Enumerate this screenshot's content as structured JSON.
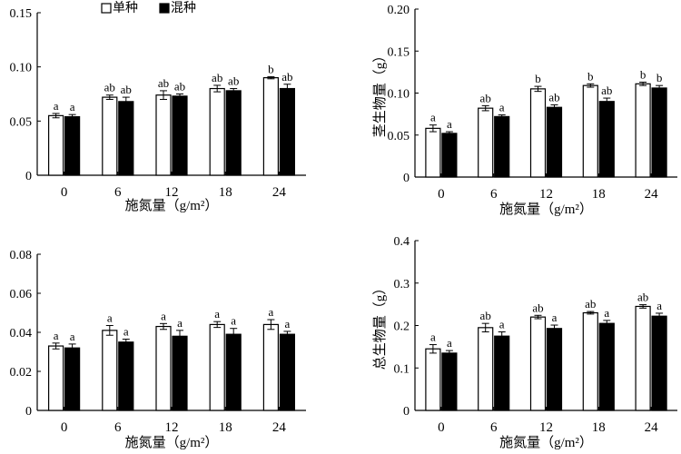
{
  "legend": {
    "single": "单种",
    "mixed": "混种"
  },
  "chart_data": [
    {
      "id": "top-left",
      "type": "bar",
      "title": "",
      "xlabel": "施氮量（g/m²）",
      "ylabel": "",
      "ylim": [
        0,
        0.15
      ],
      "yticks": [
        "0",
        "0.05",
        "0.10",
        "0.15"
      ],
      "ytick_values": [
        0,
        0.05,
        0.1,
        0.15
      ],
      "categories": [
        "0",
        "6",
        "12",
        "18",
        "24"
      ],
      "series": [
        {
          "name": "单种",
          "values": [
            0.055,
            0.072,
            0.074,
            0.08,
            0.09
          ],
          "errors": [
            0.002,
            0.002,
            0.004,
            0.003,
            0.001
          ],
          "labels": [
            "a",
            "ab",
            "ab",
            "ab",
            "b"
          ]
        },
        {
          "name": "混种",
          "values": [
            0.054,
            0.068,
            0.073,
            0.078,
            0.08
          ],
          "errors": [
            0.002,
            0.004,
            0.002,
            0.002,
            0.004
          ],
          "labels": [
            "a",
            "ab",
            "ab",
            "ab",
            "ab"
          ]
        }
      ]
    },
    {
      "id": "top-right",
      "type": "bar",
      "title": "",
      "xlabel": "施氮量（g/m²）",
      "ylabel": "茎生物量（g）",
      "ylim": [
        0,
        0.2
      ],
      "yticks": [
        "0",
        "0.05",
        "0.10",
        "0.15",
        "0.20"
      ],
      "ytick_values": [
        0,
        0.05,
        0.1,
        0.15,
        0.2
      ],
      "categories": [
        "0",
        "6",
        "12",
        "18",
        "24"
      ],
      "series": [
        {
          "name": "单种",
          "values": [
            0.058,
            0.082,
            0.105,
            0.109,
            0.111
          ],
          "errors": [
            0.004,
            0.003,
            0.003,
            0.002,
            0.002
          ],
          "labels": [
            "a",
            "ab",
            "b",
            "b",
            "b"
          ]
        },
        {
          "name": "混种",
          "values": [
            0.052,
            0.072,
            0.083,
            0.09,
            0.106
          ],
          "errors": [
            0.002,
            0.002,
            0.003,
            0.004,
            0.003
          ],
          "labels": [
            "a",
            "a",
            "ab",
            "ab",
            "b"
          ]
        }
      ]
    },
    {
      "id": "bottom-left",
      "type": "bar",
      "title": "",
      "xlabel": "施氮量（g/m²）",
      "ylabel": "",
      "ylim": [
        0,
        0.08
      ],
      "yticks": [
        "0",
        "0.02",
        "0.04",
        "0.06",
        "0.08"
      ],
      "ytick_values": [
        0,
        0.02,
        0.04,
        0.06,
        0.08
      ],
      "categories": [
        "0",
        "6",
        "12",
        "18",
        "24"
      ],
      "series": [
        {
          "name": "单种",
          "values": [
            0.033,
            0.041,
            0.043,
            0.044,
            0.044
          ],
          "errors": [
            0.0015,
            0.0025,
            0.0015,
            0.0015,
            0.0025
          ],
          "labels": [
            "a",
            "a",
            "a",
            "a",
            "a"
          ]
        },
        {
          "name": "混种",
          "values": [
            0.032,
            0.035,
            0.038,
            0.039,
            0.039
          ],
          "errors": [
            0.002,
            0.0015,
            0.003,
            0.003,
            0.0015
          ],
          "labels": [
            "a",
            "a",
            "a",
            "a",
            "a"
          ]
        }
      ]
    },
    {
      "id": "bottom-right",
      "type": "bar",
      "title": "",
      "xlabel": "施氮量（g/m²）",
      "ylabel": "总生物量（g）",
      "ylim": [
        0,
        0.4
      ],
      "yticks": [
        "0",
        "0.1",
        "0.2",
        "0.3",
        "0.4"
      ],
      "ytick_values": [
        0,
        0.1,
        0.2,
        0.3,
        0.4
      ],
      "categories": [
        "0",
        "6",
        "12",
        "18",
        "24"
      ],
      "series": [
        {
          "name": "单种",
          "values": [
            0.145,
            0.195,
            0.22,
            0.23,
            0.245
          ],
          "errors": [
            0.01,
            0.01,
            0.004,
            0.003,
            0.004
          ],
          "labels": [
            "a",
            "ab",
            "ab",
            "ab",
            "ab"
          ]
        },
        {
          "name": "混种",
          "values": [
            0.135,
            0.175,
            0.193,
            0.205,
            0.222
          ],
          "errors": [
            0.006,
            0.01,
            0.008,
            0.007,
            0.007
          ],
          "labels": [
            "a",
            "a",
            "a",
            "a",
            "a"
          ]
        }
      ]
    }
  ]
}
